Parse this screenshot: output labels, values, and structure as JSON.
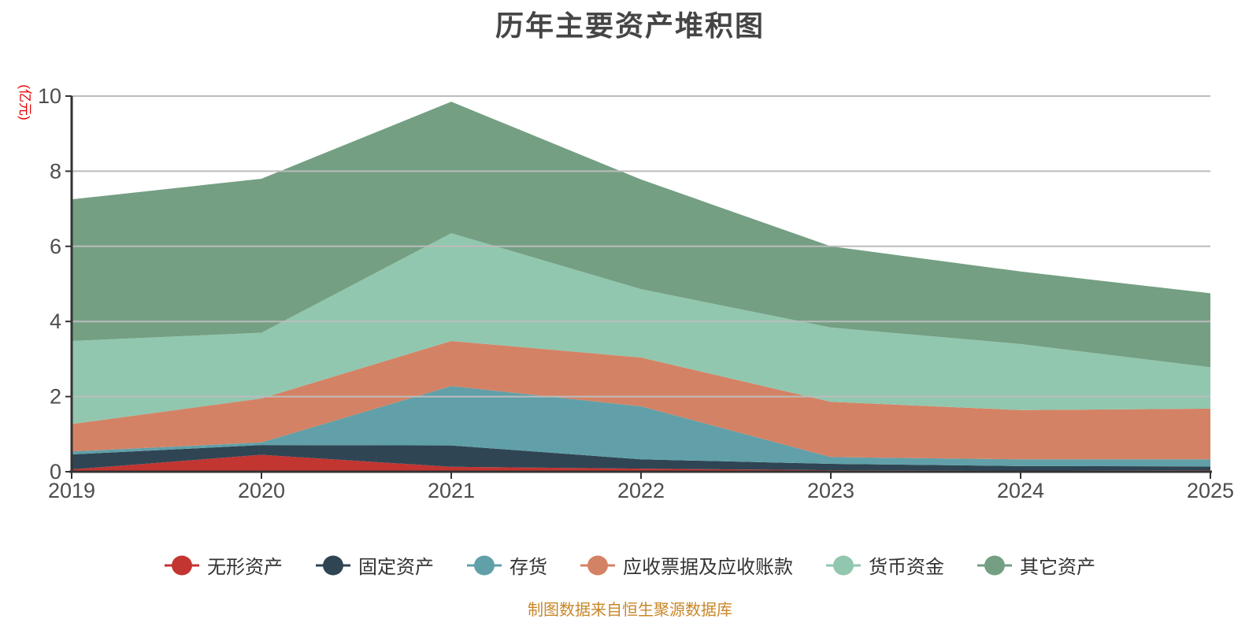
{
  "chart_data": {
    "type": "area",
    "stacked": true,
    "title": "历年主要资产堆积图",
    "ylabel": "(亿元)",
    "xlabel": "",
    "source_note": "制图数据来自恒生聚源数据库",
    "categories": [
      "2019",
      "2020",
      "2021",
      "2022",
      "2023",
      "2024",
      "2025"
    ],
    "ylim": [
      0,
      10
    ],
    "yticks": [
      0,
      2,
      4,
      6,
      8,
      10
    ],
    "grid": true,
    "legend_position": "bottom",
    "series": [
      {
        "name": "无形资产",
        "color": "#c23531",
        "values": [
          0.06,
          0.45,
          0.13,
          0.08,
          0.04,
          0.03,
          0.04
        ]
      },
      {
        "name": "固定资产",
        "color": "#2f4554",
        "values": [
          0.4,
          0.26,
          0.57,
          0.25,
          0.17,
          0.12,
          0.1
        ]
      },
      {
        "name": "存货",
        "color": "#61a0a8",
        "values": [
          0.08,
          0.07,
          1.58,
          1.41,
          0.18,
          0.18,
          0.19
        ]
      },
      {
        "name": "应收票据及应收账款",
        "color": "#d48265",
        "values": [
          0.73,
          1.17,
          1.2,
          1.3,
          1.47,
          1.31,
          1.35
        ]
      },
      {
        "name": "货币资金",
        "color": "#91c7ae",
        "values": [
          2.21,
          1.75,
          2.87,
          1.82,
          1.98,
          1.76,
          1.1
        ]
      },
      {
        "name": "其它资产",
        "color": "#749f83",
        "values": [
          3.77,
          4.1,
          3.5,
          2.92,
          2.16,
          1.93,
          1.97
        ]
      }
    ],
    "colors": {
      "title_text": "#454545",
      "axis_line": "#333333",
      "axis_label": "#4d4d4d",
      "gridline": "#bcbcbc",
      "y_unit_text": "#e60000",
      "legend_text": "#333333",
      "source_note_text": "#c8872a"
    }
  }
}
